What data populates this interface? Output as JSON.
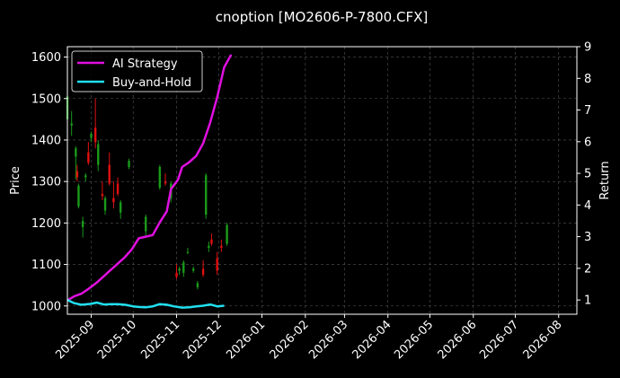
{
  "chart_data": {
    "type": "line",
    "title": "cnoption [MO2606-P-7800.CFX]",
    "xlabel": "",
    "ylabel": "Price",
    "y2label": "Return",
    "grid": true,
    "legend_position": "top-left",
    "x_ticks": [
      "2025-09",
      "2025-10",
      "2025-11",
      "2025-12",
      "2026-01",
      "2026-02",
      "2026-03",
      "2026-04",
      "2026-05",
      "2026-06",
      "2026-07",
      "2026-08"
    ],
    "x_range": [
      "2025-08-15",
      "2026-08-14"
    ],
    "y_ticks": [
      1000,
      1100,
      1200,
      1300,
      1400,
      1500,
      1600
    ],
    "ylim": [
      980,
      1625
    ],
    "y2_ticks": [
      1,
      2,
      3,
      4,
      5,
      6,
      7,
      8,
      9
    ],
    "y2lim": [
      0.55,
      9.0
    ],
    "colors": {
      "up": "#1a9a1a",
      "down": "#e01010",
      "ai": "#e010e0",
      "bh": "#20e0f0",
      "grid": "#555555"
    },
    "series": [
      {
        "name": "AI Strategy",
        "axis": "right",
        "color": "#e010e0",
        "points": [
          [
            "2025-08-15",
            0.99
          ],
          [
            "2025-08-20",
            1.12
          ],
          [
            "2025-08-25",
            1.2
          ],
          [
            "2025-08-30",
            1.35
          ],
          [
            "2025-09-05",
            1.55
          ],
          [
            "2025-09-10",
            1.75
          ],
          [
            "2025-09-15",
            1.95
          ],
          [
            "2025-09-20",
            2.15
          ],
          [
            "2025-09-25",
            2.35
          ],
          [
            "2025-09-30",
            2.6
          ],
          [
            "2025-10-05",
            2.95
          ],
          [
            "2025-10-10",
            3.0
          ],
          [
            "2025-10-15",
            3.05
          ],
          [
            "2025-10-20",
            3.45
          ],
          [
            "2025-10-25",
            3.8
          ],
          [
            "2025-10-28",
            4.5
          ],
          [
            "2025-11-02",
            4.8
          ],
          [
            "2025-11-05",
            5.2
          ],
          [
            "2025-11-10",
            5.35
          ],
          [
            "2025-11-15",
            5.55
          ],
          [
            "2025-11-20",
            5.95
          ],
          [
            "2025-11-25",
            6.6
          ],
          [
            "2025-11-30",
            7.4
          ],
          [
            "2025-12-05",
            8.35
          ],
          [
            "2025-12-10",
            8.75
          ]
        ]
      },
      {
        "name": "Buy-and-Hold",
        "axis": "right",
        "color": "#20e0f0",
        "points": [
          [
            "2025-08-15",
            1.0
          ],
          [
            "2025-08-20",
            0.9
          ],
          [
            "2025-08-25",
            0.85
          ],
          [
            "2025-09-01",
            0.88
          ],
          [
            "2025-09-05",
            0.92
          ],
          [
            "2025-09-10",
            0.86
          ],
          [
            "2025-09-15",
            0.87
          ],
          [
            "2025-09-20",
            0.87
          ],
          [
            "2025-09-25",
            0.85
          ],
          [
            "2025-10-01",
            0.8
          ],
          [
            "2025-10-05",
            0.78
          ],
          [
            "2025-10-10",
            0.77
          ],
          [
            "2025-10-15",
            0.8
          ],
          [
            "2025-10-20",
            0.87
          ],
          [
            "2025-10-25",
            0.85
          ],
          [
            "2025-10-30",
            0.8
          ],
          [
            "2025-11-05",
            0.76
          ],
          [
            "2025-11-10",
            0.77
          ],
          [
            "2025-11-15",
            0.8
          ],
          [
            "2025-11-20",
            0.82
          ],
          [
            "2025-11-25",
            0.86
          ],
          [
            "2025-11-30",
            0.8
          ],
          [
            "2025-12-05",
            0.82
          ]
        ]
      }
    ],
    "candles": [
      [
        "2025-08-15",
        1450,
        1515,
        1440,
        1505
      ],
      [
        "2025-08-18",
        1435,
        1470,
        1410,
        1440
      ],
      [
        "2025-08-21",
        1360,
        1385,
        1305,
        1380
      ],
      [
        "2025-08-22",
        1325,
        1340,
        1300,
        1310
      ],
      [
        "2025-08-23",
        1240,
        1295,
        1235,
        1290
      ],
      [
        "2025-08-26",
        1190,
        1215,
        1165,
        1205
      ],
      [
        "2025-08-28",
        1310,
        1320,
        1300,
        1315
      ],
      [
        "2025-08-30",
        1370,
        1395,
        1340,
        1345
      ],
      [
        "2025-09-01",
        1405,
        1420,
        1395,
        1415
      ],
      [
        "2025-09-04",
        1430,
        1500,
        1380,
        1395
      ],
      [
        "2025-09-06",
        1340,
        1400,
        1325,
        1390
      ],
      [
        "2025-09-09",
        1270,
        1300,
        1255,
        1265
      ],
      [
        "2025-09-11",
        1230,
        1265,
        1220,
        1260
      ],
      [
        "2025-09-14",
        1340,
        1370,
        1290,
        1295
      ],
      [
        "2025-09-17",
        1260,
        1300,
        1235,
        1250
      ],
      [
        "2025-09-20",
        1295,
        1310,
        1265,
        1270
      ],
      [
        "2025-09-22",
        1225,
        1255,
        1210,
        1250
      ],
      [
        "2025-09-28",
        1335,
        1355,
        1330,
        1350
      ],
      [
        "2025-10-10",
        1180,
        1220,
        1170,
        1215
      ],
      [
        "2025-10-20",
        1285,
        1340,
        1280,
        1335
      ],
      [
        "2025-10-24",
        1300,
        1320,
        1290,
        1295
      ],
      [
        "2025-10-28",
        1260,
        1300,
        1250,
        1295
      ],
      [
        "2025-11-01",
        1080,
        1100,
        1065,
        1070
      ],
      [
        "2025-11-03",
        1085,
        1095,
        1075,
        1090
      ],
      [
        "2025-11-06",
        1080,
        1110,
        1070,
        1105
      ],
      [
        "2025-11-09",
        1130,
        1140,
        1125,
        1130
      ],
      [
        "2025-11-13",
        1085,
        1095,
        1080,
        1090
      ],
      [
        "2025-11-16",
        1045,
        1060,
        1040,
        1055
      ],
      [
        "2025-11-20",
        1090,
        1110,
        1070,
        1075
      ],
      [
        "2025-11-22",
        1220,
        1320,
        1210,
        1315
      ],
      [
        "2025-11-24",
        1140,
        1155,
        1130,
        1145
      ],
      [
        "2025-11-26",
        1160,
        1175,
        1145,
        1150
      ],
      [
        "2025-11-30",
        1115,
        1130,
        1075,
        1085
      ],
      [
        "2025-12-03",
        1145,
        1160,
        1130,
        1140
      ],
      [
        "2025-12-07",
        1150,
        1200,
        1145,
        1195
      ]
    ]
  }
}
